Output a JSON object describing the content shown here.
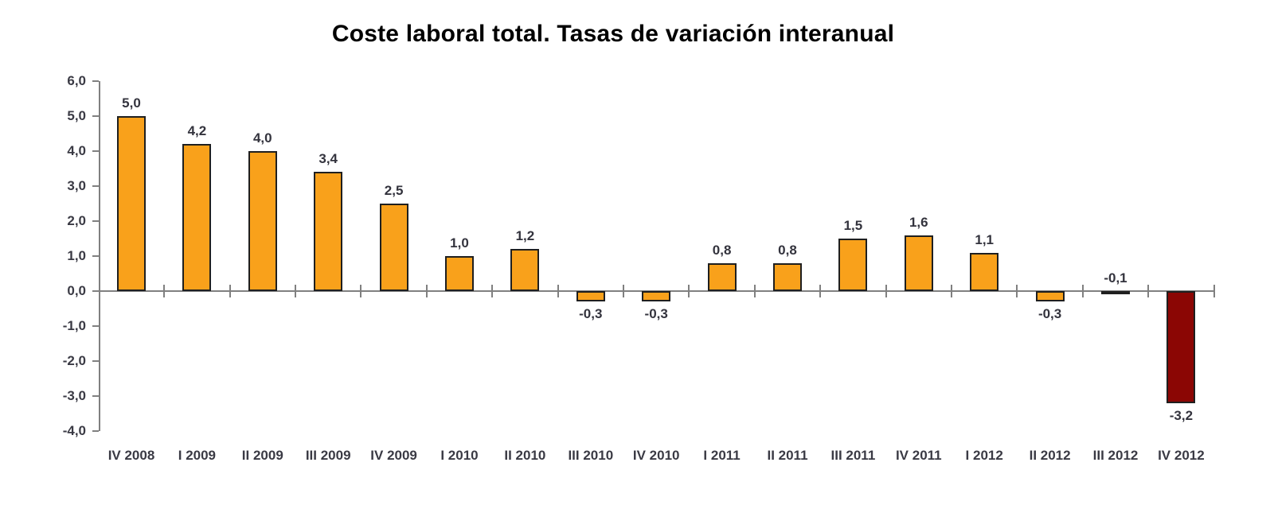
{
  "chart_data": {
    "type": "bar",
    "title": "Coste laboral total. Tasas de variación interanual",
    "categories": [
      "IV 2008",
      "I 2009",
      "II 2009",
      "III 2009",
      "IV 2009",
      "I 2010",
      "II 2010",
      "III 2010",
      "IV 2010",
      "I 2011",
      "II 2011",
      "III 2011",
      "IV 2011",
      "I 2012",
      "II 2012",
      "III 2012",
      "IV 2012"
    ],
    "values": [
      5.0,
      4.2,
      4.0,
      3.4,
      2.5,
      1.0,
      1.2,
      -0.3,
      -0.3,
      0.8,
      0.8,
      1.5,
      1.6,
      1.1,
      -0.3,
      -0.1,
      -3.2
    ],
    "point_labels": [
      "5,0",
      "4,2",
      "4,0",
      "3,4",
      "2,5",
      "1,0",
      "1,2",
      "-0,3",
      "-0,3",
      "0,8",
      "0,8",
      "1,5",
      "1,6",
      "1,1",
      "-0,3",
      "-0,1",
      "-3,2"
    ],
    "label_below": [
      false,
      false,
      false,
      false,
      false,
      false,
      false,
      true,
      true,
      false,
      false,
      false,
      false,
      false,
      true,
      false,
      true
    ],
    "xlabel": "",
    "ylabel": "",
    "ylim": [
      -4.0,
      6.0
    ],
    "ytick_step": 1.0,
    "ytick_labels": [
      "6,0",
      "5,0",
      "4,0",
      "3,0",
      "2,0",
      "1,0",
      "0,0",
      "-1,0",
      "-2,0",
      "-3,0",
      "-4,0"
    ],
    "grid": false,
    "legend_position": "none",
    "highlight_index": 16,
    "colors": {
      "bar_fill": "#F9A11B",
      "bar_border": "#1F1F1F",
      "highlight_fill": "#8B0604",
      "axis": "#808080",
      "title_text": "#000000",
      "label_text": "#33333D",
      "tick_text": "#3A3A44"
    }
  }
}
